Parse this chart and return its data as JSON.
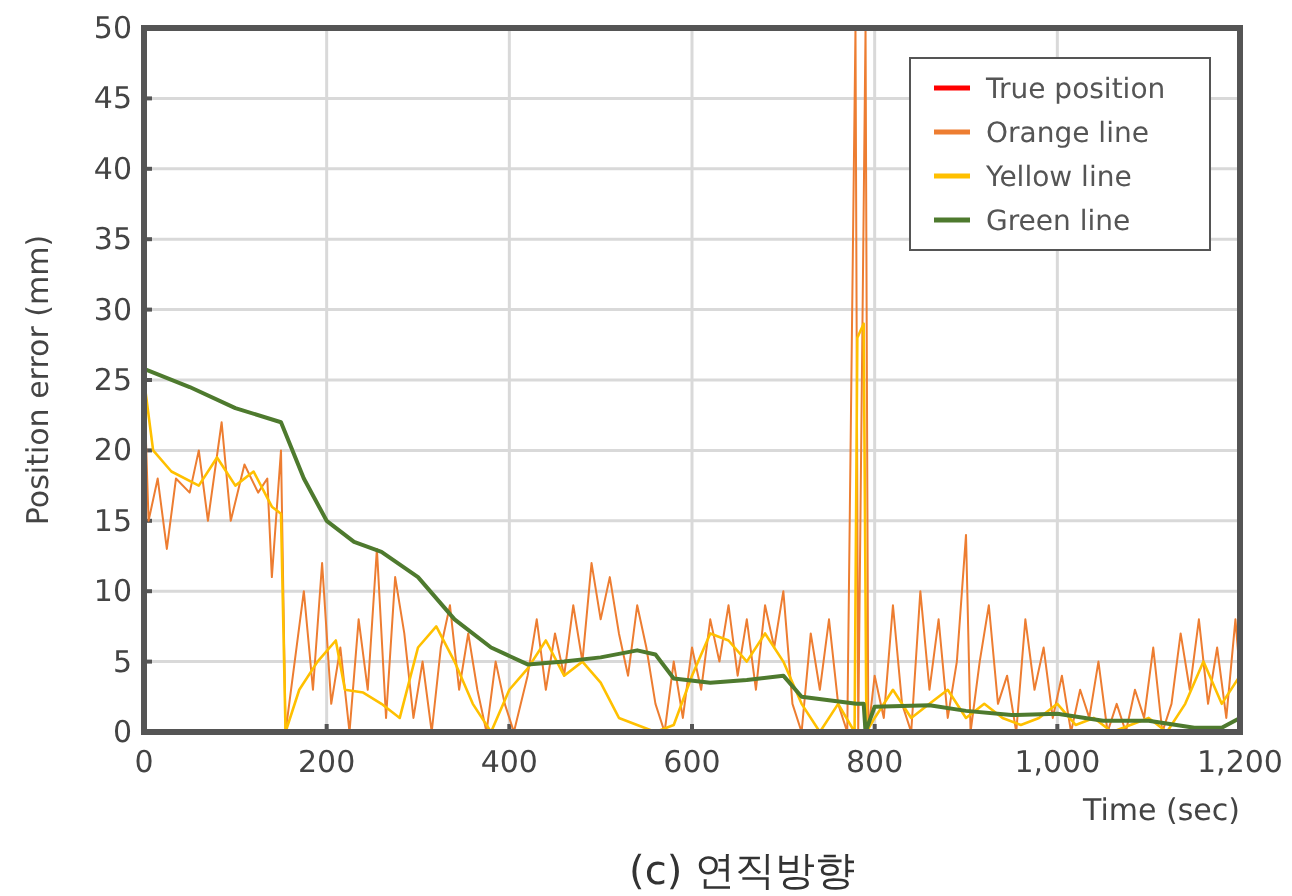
{
  "chart_data": {
    "type": "line",
    "title": "(c) 연직방향",
    "xlabel": "Time (sec)",
    "ylabel": "Position error (mm)",
    "xlim": [
      0,
      1200
    ],
    "ylim": [
      0,
      50
    ],
    "xticks": [
      0,
      200,
      400,
      600,
      800,
      {
        "value": 1000,
        "label": "1,000"
      },
      {
        "value": 1200,
        "label": "1,200"
      }
    ],
    "yticks": [
      0,
      5,
      10,
      15,
      20,
      25,
      30,
      35,
      40,
      45,
      50
    ],
    "grid": true,
    "legend": "top right",
    "series": [
      {
        "name": "True position",
        "color": "#ff0000"
      },
      {
        "name": "Orange line",
        "color": "#ed7d31",
        "x": [
          0,
          5,
          15,
          25,
          35,
          50,
          60,
          70,
          85,
          95,
          110,
          125,
          135,
          140,
          150,
          155,
          165,
          175,
          185,
          195,
          205,
          215,
          225,
          235,
          245,
          255,
          265,
          275,
          285,
          295,
          305,
          315,
          325,
          335,
          345,
          355,
          365,
          375,
          385,
          395,
          405,
          420,
          430,
          440,
          450,
          460,
          470,
          480,
          490,
          500,
          510,
          520,
          530,
          540,
          550,
          560,
          570,
          580,
          590,
          600,
          610,
          620,
          630,
          640,
          650,
          660,
          670,
          680,
          690,
          700,
          710,
          720,
          730,
          740,
          750,
          760,
          770,
          779,
          782,
          790,
          793,
          800,
          810,
          820,
          830,
          840,
          850,
          860,
          870,
          880,
          890,
          900,
          905,
          915,
          925,
          935,
          945,
          955,
          965,
          975,
          985,
          995,
          1005,
          1015,
          1025,
          1035,
          1045,
          1055,
          1065,
          1075,
          1085,
          1095,
          1105,
          1115,
          1125,
          1135,
          1145,
          1155,
          1165,
          1175,
          1185,
          1195,
          1200
        ],
        "values": [
          25,
          15,
          18,
          13,
          18,
          17,
          20,
          15,
          22,
          15,
          19,
          17,
          18,
          11,
          20,
          0,
          5,
          10,
          3,
          12,
          2,
          6,
          0,
          8,
          3,
          13,
          1,
          11,
          7,
          1,
          5,
          0,
          6,
          9,
          3,
          7,
          3,
          0,
          5,
          2,
          0,
          4,
          8,
          3,
          7,
          4,
          9,
          5,
          12,
          8,
          11,
          7,
          4,
          9,
          6,
          2,
          0,
          5,
          1,
          6,
          3,
          8,
          5,
          9,
          4,
          8,
          3,
          9,
          6,
          10,
          2,
          0,
          7,
          3,
          8,
          2,
          0,
          50,
          0,
          50,
          0,
          4,
          1,
          9,
          2,
          0,
          10,
          3,
          8,
          1,
          5,
          14,
          0,
          5,
          9,
          2,
          4,
          0,
          8,
          3,
          6,
          1,
          4,
          0,
          3,
          1,
          5,
          0,
          2,
          0,
          3,
          1,
          6,
          0,
          2,
          7,
          3,
          8,
          2,
          6,
          1,
          8,
          4
        ]
      },
      {
        "name": "Yellow line",
        "color": "#ffc000",
        "x": [
          0,
          10,
          30,
          60,
          80,
          100,
          120,
          140,
          150,
          155,
          170,
          190,
          210,
          220,
          240,
          260,
          280,
          300,
          320,
          340,
          360,
          380,
          400,
          420,
          440,
          460,
          480,
          500,
          520,
          540,
          560,
          580,
          600,
          620,
          640,
          660,
          680,
          700,
          720,
          740,
          760,
          778,
          781,
          788,
          791,
          800,
          820,
          840,
          860,
          880,
          900,
          920,
          940,
          960,
          980,
          1000,
          1020,
          1040,
          1060,
          1080,
          1100,
          1120,
          1140,
          1160,
          1180,
          1200
        ],
        "values": [
          25,
          20,
          18.5,
          17.5,
          19.5,
          17.5,
          18.5,
          16,
          15.5,
          0,
          3,
          5,
          6.5,
          3,
          2.8,
          2,
          1,
          6,
          7.5,
          5,
          2,
          0,
          3,
          4.5,
          6.5,
          4,
          5,
          3.5,
          1,
          0.5,
          0,
          0.5,
          4,
          7,
          6.5,
          5,
          7,
          5,
          2,
          0,
          2,
          0,
          28,
          29,
          0,
          1,
          3,
          1,
          2,
          3,
          1,
          2,
          1,
          0.5,
          1,
          2,
          0.5,
          1,
          0,
          0.5,
          1,
          0,
          2,
          5,
          2,
          4
        ]
      },
      {
        "name": "Green line",
        "color": "#4e7a2e",
        "x": [
          0,
          50,
          100,
          150,
          175,
          200,
          230,
          260,
          300,
          340,
          380,
          420,
          460,
          500,
          540,
          560,
          580,
          620,
          660,
          700,
          720,
          780,
          788,
          790,
          800,
          860,
          900,
          950,
          1000,
          1050,
          1100,
          1150,
          1180,
          1200
        ],
        "values": [
          25.8,
          24.5,
          23,
          22,
          18,
          15,
          13.5,
          12.8,
          11,
          8,
          6,
          4.8,
          5,
          5.3,
          5.8,
          5.5,
          3.8,
          3.5,
          3.7,
          4,
          2.5,
          2,
          2,
          0,
          1.8,
          1.9,
          1.5,
          1.2,
          1.3,
          0.8,
          0.8,
          0.3,
          0.3,
          1
        ]
      }
    ]
  }
}
